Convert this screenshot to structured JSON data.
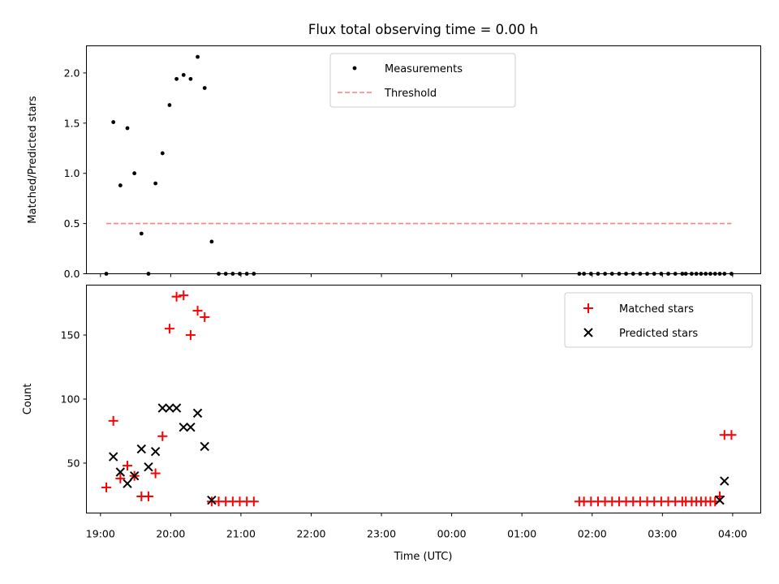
{
  "chart_data": [
    {
      "type": "scatter",
      "title": "Flux total observing time = 0.00 h",
      "xlabel": "",
      "ylabel": "Matched/Predicted stars",
      "xlim": [
        "18:48",
        "04:24"
      ],
      "ylim": [
        0,
        2.27
      ],
      "yticks": [
        0.0,
        0.5,
        1.0,
        1.5,
        2.0
      ],
      "ytick_labels": [
        "0.0",
        "0.5",
        "1.0",
        "1.5",
        "2.0"
      ],
      "legend_position": "top-center",
      "series": [
        {
          "name": "Measurements",
          "kind": "points",
          "color": "#000000",
          "x": [
            "19:05",
            "19:11",
            "19:17",
            "19:23",
            "19:29",
            "19:35",
            "19:41",
            "19:47",
            "19:53",
            "19:59",
            "20:05",
            "20:11",
            "20:17",
            "20:23",
            "20:29",
            "20:35",
            "20:41",
            "20:47",
            "20:53",
            "20:59",
            "21:05",
            "21:11",
            "01:49",
            "01:53",
            "01:59",
            "02:05",
            "02:11",
            "02:17",
            "02:23",
            "02:29",
            "02:35",
            "02:41",
            "02:47",
            "02:53",
            "02:59",
            "03:05",
            "03:11",
            "03:17",
            "03:20",
            "03:25",
            "03:29",
            "03:33",
            "03:37",
            "03:41",
            "03:45",
            "03:49",
            "03:53",
            "03:59"
          ],
          "y": [
            0.0,
            1.51,
            0.88,
            1.45,
            1.0,
            0.4,
            0.0,
            0.9,
            1.2,
            1.68,
            1.94,
            1.98,
            1.94,
            2.16,
            1.85,
            0.32,
            0.0,
            0.0,
            0.0,
            0.0,
            0.0,
            0.0,
            0.0,
            0.0,
            0.0,
            0.0,
            0.0,
            0.0,
            0.0,
            0.0,
            0.0,
            0.0,
            0.0,
            0.0,
            0.0,
            0.0,
            0.0,
            0.0,
            0.0,
            0.0,
            0.0,
            0.0,
            0.0,
            0.0,
            0.0,
            0.0,
            0.0,
            0.0
          ]
        },
        {
          "name": "Threshold",
          "kind": "dashed-line",
          "color": "#ff7f7f",
          "x": [
            "19:05",
            "03:59"
          ],
          "y": [
            0.5,
            0.5
          ]
        }
      ]
    },
    {
      "type": "scatter",
      "title": "",
      "xlabel": "Time (UTC)",
      "ylabel": "Count",
      "xlim": [
        "18:48",
        "04:24"
      ],
      "ylim": [
        11,
        189
      ],
      "yticks": [
        50,
        100,
        150
      ],
      "ytick_labels": [
        "50",
        "100",
        "150"
      ],
      "xticks": [
        "19:00",
        "20:00",
        "21:00",
        "22:00",
        "23:00",
        "00:00",
        "01:00",
        "02:00",
        "03:00",
        "04:00"
      ],
      "legend_position": "top-right",
      "series": [
        {
          "name": "Matched stars",
          "marker": "plus",
          "color": "#ff0000",
          "x": [
            "19:05",
            "19:11",
            "19:17",
            "19:23",
            "19:29",
            "19:35",
            "19:41",
            "19:47",
            "19:53",
            "19:59",
            "20:05",
            "20:11",
            "20:17",
            "20:23",
            "20:29",
            "20:35",
            "20:41",
            "20:47",
            "20:53",
            "20:59",
            "21:05",
            "21:11",
            "01:49",
            "01:53",
            "01:59",
            "02:05",
            "02:11",
            "02:17",
            "02:23",
            "02:29",
            "02:35",
            "02:41",
            "02:47",
            "02:53",
            "02:59",
            "03:05",
            "03:11",
            "03:17",
            "03:20",
            "03:25",
            "03:29",
            "03:33",
            "03:37",
            "03:41",
            "03:45",
            "03:49",
            "03:53",
            "03:59"
          ],
          "y": [
            31,
            83,
            38,
            48,
            40,
            24,
            24,
            42,
            71,
            155,
            180,
            181,
            150,
            169,
            164,
            20,
            20,
            20,
            20,
            20,
            20,
            20,
            20,
            20,
            20,
            20,
            20,
            20,
            20,
            20,
            20,
            20,
            20,
            20,
            20,
            20,
            20,
            20,
            20,
            20,
            20,
            20,
            20,
            20,
            20,
            24,
            72,
            72
          ]
        },
        {
          "name": "Predicted stars",
          "marker": "x",
          "color": "#000000",
          "x": [
            "19:11",
            "19:17",
            "19:23",
            "19:29",
            "19:35",
            "19:41",
            "19:47",
            "19:53",
            "19:59",
            "20:05",
            "20:11",
            "20:17",
            "20:23",
            "20:29",
            "20:35",
            "03:49",
            "03:53"
          ],
          "y": [
            55,
            43,
            34,
            40,
            61,
            47,
            59,
            93,
            93,
            93,
            78,
            78,
            89,
            63,
            21,
            21,
            36
          ]
        }
      ]
    }
  ]
}
